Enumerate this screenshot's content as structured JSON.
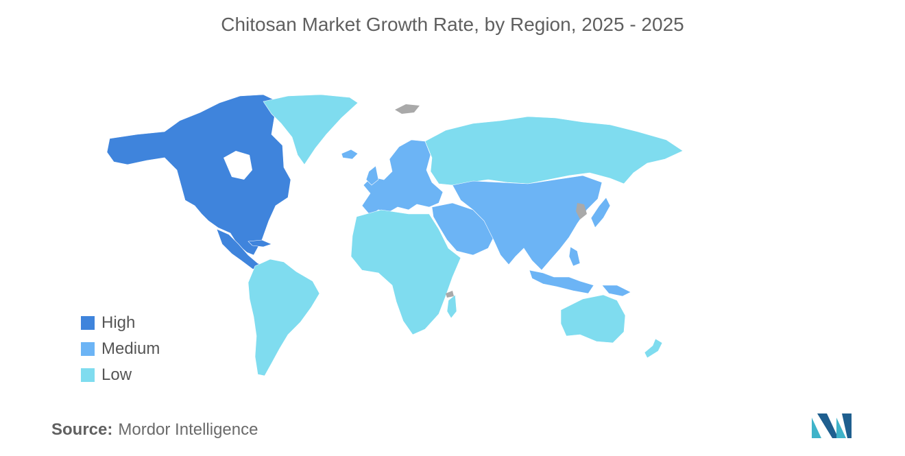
{
  "title": "Chitosan Market Growth Rate, by Region, 2025 - 2025",
  "legend": {
    "items": [
      {
        "label": "High",
        "color": "#3f84dc"
      },
      {
        "label": "Medium",
        "color": "#6cb4f5"
      },
      {
        "label": "Low",
        "color": "#7fdcef"
      }
    ]
  },
  "regions": {
    "north_america": "High",
    "central_america": "High",
    "greenland": "Low",
    "south_america": "Low",
    "europe": "Medium",
    "russia": "Low",
    "africa": "Low",
    "middle_east": "Medium",
    "asia": "Medium",
    "southeast_asia": "Medium",
    "australia": "Low",
    "new_zealand": "Low",
    "no_data_color": "#a9a9a9"
  },
  "source": {
    "label": "Source:",
    "value": "Mordor Intelligence"
  },
  "logo": {
    "icon": "mordor-intelligence-logo-icon"
  }
}
